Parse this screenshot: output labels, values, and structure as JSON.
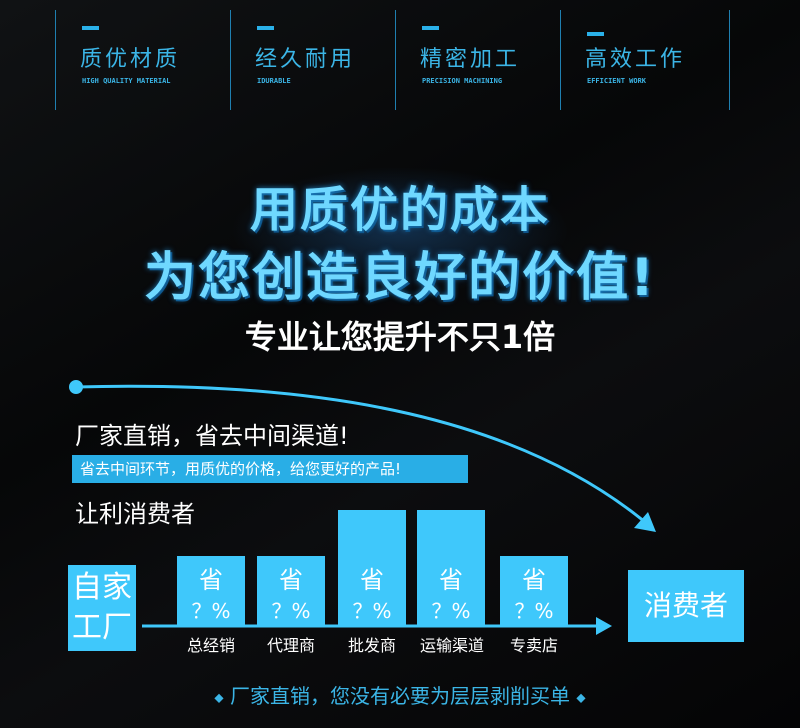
{
  "features": [
    {
      "title": "质优材质",
      "subtitle": "HIGH QUALITY MATERIAL"
    },
    {
      "title": "经久耐用",
      "subtitle": "IDURABLE"
    },
    {
      "title": "精密加工",
      "subtitle": "PRECISION MACHINING"
    },
    {
      "title": "高效工作",
      "subtitle": "EFFICIENT WORK"
    }
  ],
  "headline": {
    "line1": "用质优的成本",
    "line2": "为您创造良好的价值!",
    "line3": "专业让您提升不只1倍"
  },
  "direct": {
    "title": "厂家直销，省去中间渠道!",
    "banner": "省去中间环节，用质优的价格，给您更好的产品!",
    "subtitle": "让利消费者"
  },
  "flow": {
    "source": "自家工厂",
    "target": "消费者",
    "save_label": "省",
    "pct_label": "？%",
    "stages": [
      "总经销",
      "代理商",
      "批发商",
      "运输渠道",
      "专卖店"
    ]
  },
  "footer": {
    "text": "厂家直销，您没有必要为层层剥削买单",
    "ornament": "◆"
  },
  "colors": {
    "accent": "#3fc8fb",
    "headline": "#6fd8ff",
    "feature": "#3bb5e6"
  }
}
